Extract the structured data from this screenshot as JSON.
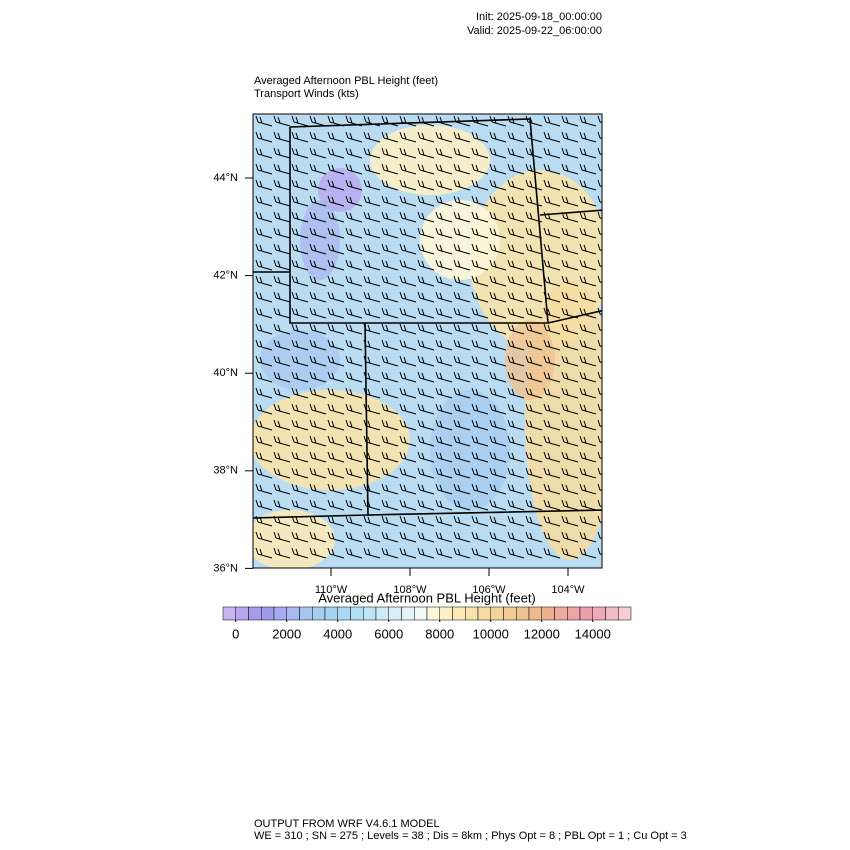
{
  "header": {
    "init": "Init: 2025-09-18_00:00:00",
    "valid": "Valid: 2025-09-22_06:00:00"
  },
  "map": {
    "title": "Averaged Afternoon PBL Height   (feet)",
    "subtitle": "Transport Winds   (kts)",
    "lat_labels": [
      "44°N",
      "42°N",
      "40°N",
      "38°N",
      "36°N"
    ],
    "lon_labels": [
      "110°W",
      "108°W",
      "106°W",
      "104°W"
    ]
  },
  "colorbar": {
    "title": "Averaged Afternoon PBL Height  (feet)",
    "lim": [
      -500,
      15500
    ],
    "ticks": [
      0,
      2000,
      4000,
      6000,
      8000,
      10000,
      12000,
      14000
    ],
    "colors": [
      "#c9b3f0",
      "#b9a6ef",
      "#a99aec",
      "#9f9cec",
      "#a8abef",
      "#a9b9f0",
      "#a8c4f1",
      "#a6cdf0",
      "#a3d4f1",
      "#a8dbf3",
      "#b2e0f4",
      "#c0e6f5",
      "#cdeaf6",
      "#d9eff7",
      "#e5f3f8",
      "#f1f8f8",
      "#fdf6d8",
      "#fdf0c6",
      "#fbeab8",
      "#f8e3ab",
      "#f6dca2",
      "#f3d49a",
      "#f1cc94",
      "#efc391",
      "#eeba8e",
      "#edb08d",
      "#ecac9a",
      "#eca4a4",
      "#ed9fab",
      "#efaab6",
      "#f2bcc4",
      "#f6ced3"
    ]
  },
  "footer": {
    "line1": "OUTPUT FROM WRF V4.6.1 MODEL",
    "line2": "WE = 310 ; SN = 275 ; Levels = 38 ; Dis = 8km ; Phys Opt = 8 ; PBL Opt = 1 ; Cu Opt = 3"
  }
}
